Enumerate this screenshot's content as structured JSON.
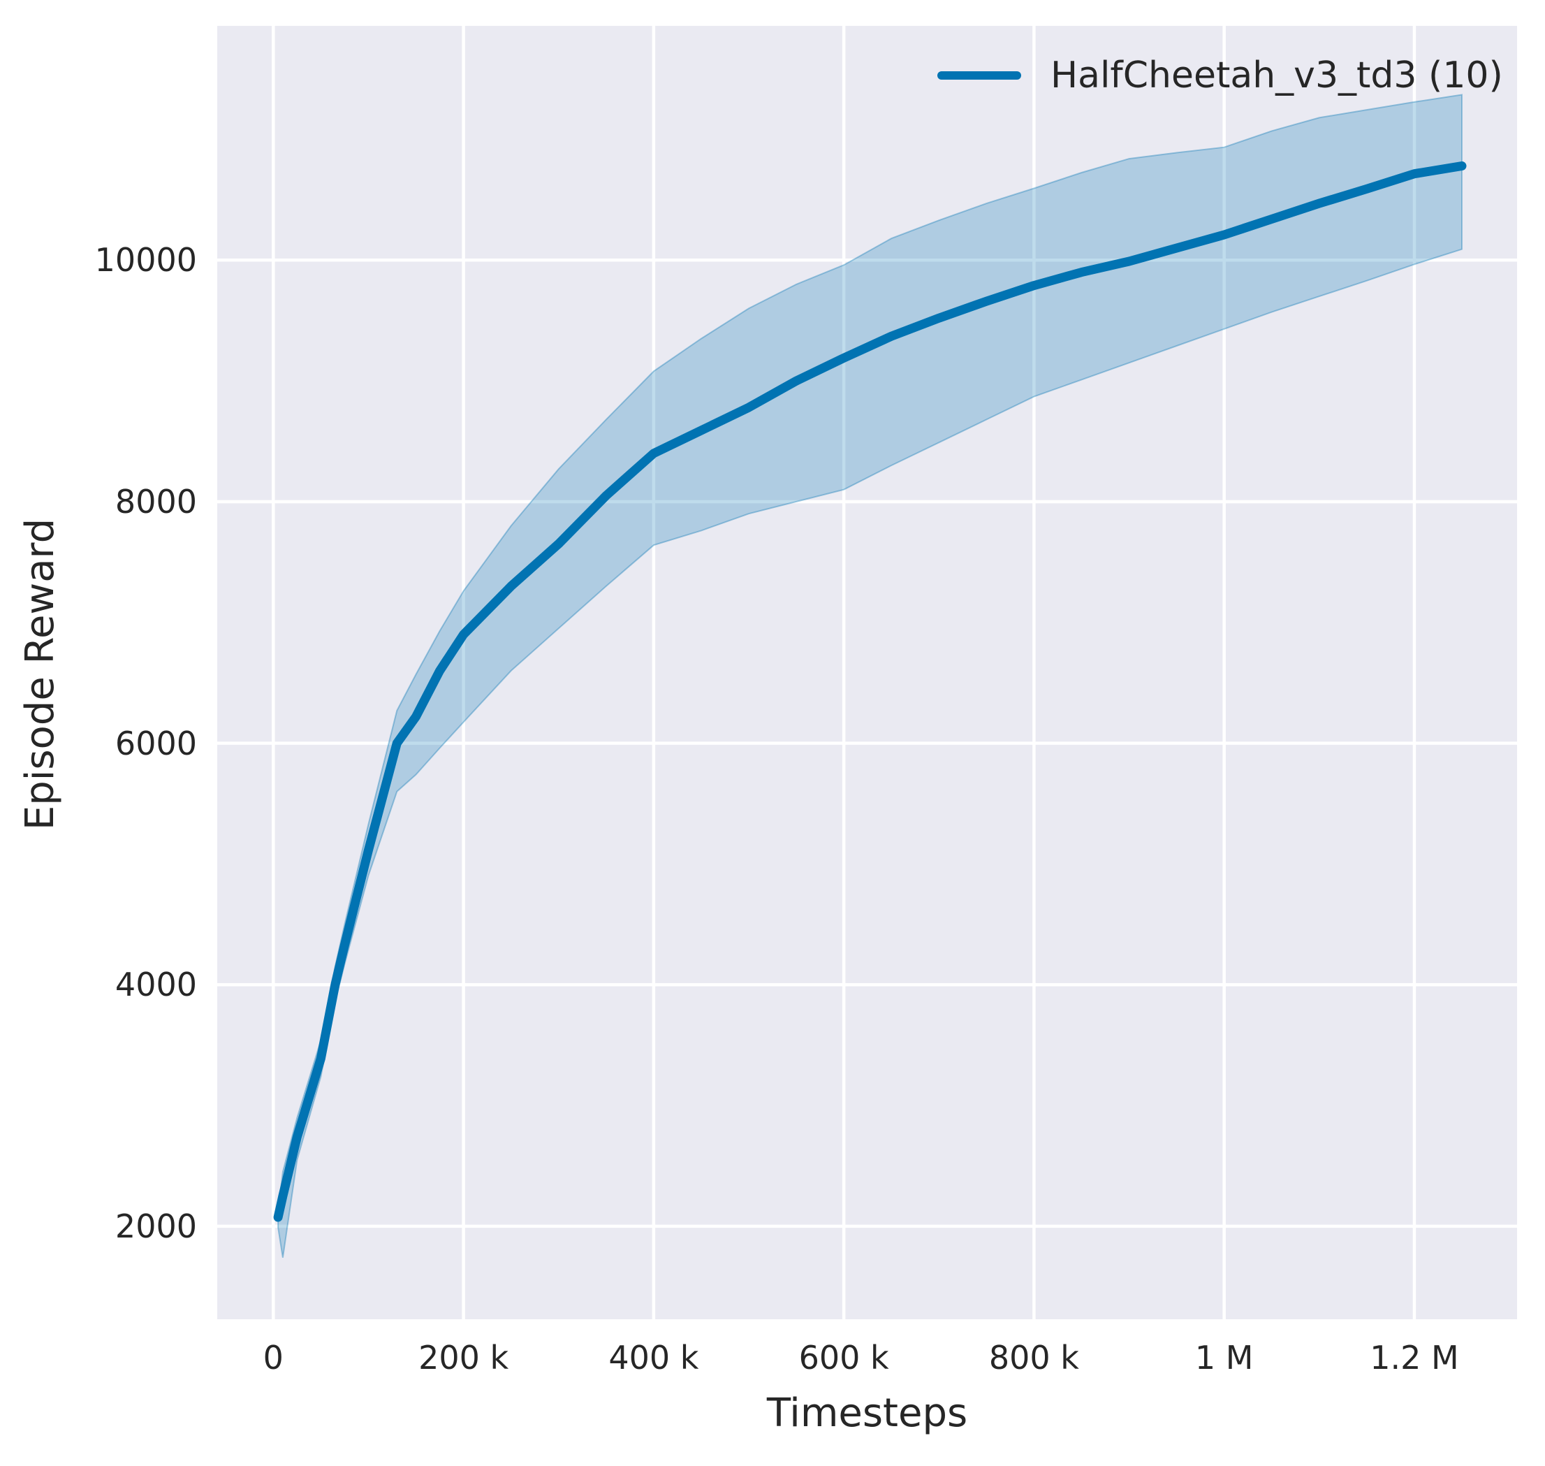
{
  "colors": {
    "line": "#0173b2",
    "band_fill": "rgba(1,115,178,0.25)",
    "band_edge": "rgba(1,115,178,0.35)",
    "plot_background": "#eaeaf2",
    "gridline": "#ffffff",
    "text": "#262626",
    "figure_background": "#ffffff"
  },
  "chart_data": {
    "type": "line",
    "title": "",
    "xlabel": "Timesteps",
    "ylabel": "Episode Reward",
    "grid": true,
    "legend_position": "upper right",
    "legend": [
      {
        "label": "HalfCheetah_v3_td3 (10)",
        "color": "#0173b2"
      }
    ],
    "xlim": [
      -59000,
      1308000
    ],
    "ylim": [
      1230,
      11940
    ],
    "x_ticks": [
      0,
      200000,
      400000,
      600000,
      800000,
      1000000,
      1200000
    ],
    "x_tick_labels": [
      "0",
      "200 k",
      "400 k",
      "600 k",
      "800 k",
      "1 M",
      "1.2 M"
    ],
    "y_ticks": [
      2000,
      4000,
      6000,
      8000,
      10000
    ],
    "y_tick_labels": [
      "2000",
      "4000",
      "6000",
      "8000",
      "10000"
    ],
    "series": [
      {
        "name": "HalfCheetah_v3_td3 (10)",
        "x": [
          5000,
          10000,
          25000,
          50000,
          65000,
          75000,
          100000,
          130000,
          150000,
          175000,
          200000,
          250000,
          300000,
          350000,
          400000,
          450000,
          500000,
          550000,
          600000,
          650000,
          700000,
          750000,
          800000,
          850000,
          900000,
          950000,
          1000000,
          1050000,
          1100000,
          1150000,
          1200000,
          1250000
        ],
        "mean": [
          2075,
          2250,
          2740,
          3390,
          4000,
          4330,
          5115,
          6000,
          6220,
          6600,
          6900,
          7300,
          7650,
          8050,
          8400,
          8590,
          8780,
          9000,
          9190,
          9370,
          9520,
          9660,
          9790,
          9900,
          9990,
          10100,
          10210,
          10340,
          10470,
          10590,
          10715,
          10780
        ],
        "band_upper": [
          2130,
          2450,
          2900,
          3540,
          4150,
          4500,
          5330,
          6270,
          6570,
          6930,
          7260,
          7800,
          8270,
          8680,
          9080,
          9350,
          9600,
          9800,
          9960,
          10180,
          10330,
          10470,
          10595,
          10725,
          10840,
          10890,
          10935,
          11070,
          11180,
          11245,
          11310,
          11370
        ],
        "band_lower": [
          1990,
          1740,
          2550,
          3240,
          3860,
          4170,
          4905,
          5600,
          5740,
          5960,
          6175,
          6600,
          6950,
          7300,
          7640,
          7760,
          7900,
          8000,
          8100,
          8300,
          8490,
          8680,
          8870,
          9010,
          9150,
          9290,
          9430,
          9570,
          9700,
          9830,
          9965,
          10090
        ]
      }
    ]
  }
}
